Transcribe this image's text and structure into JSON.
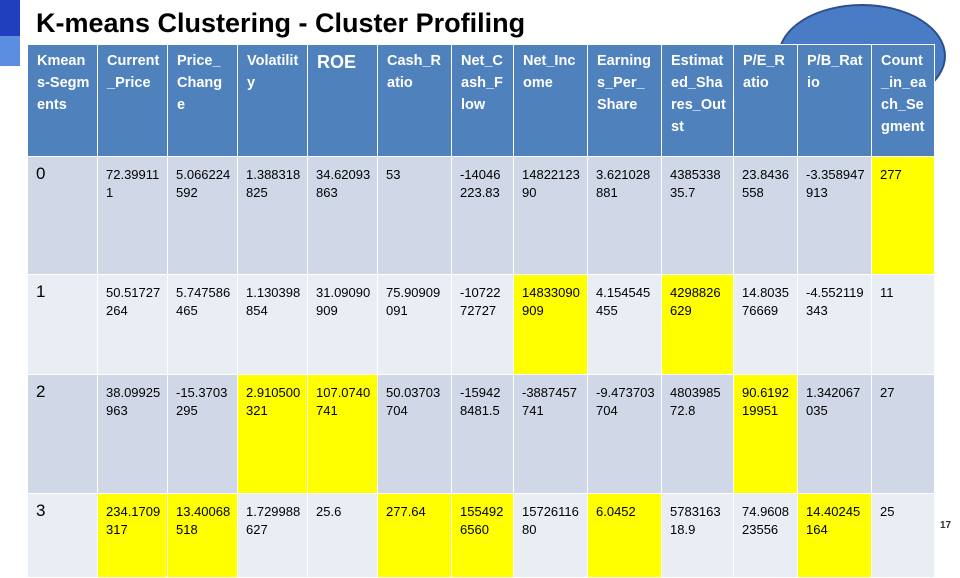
{
  "title": "K-means Clustering - Cluster Profiling",
  "page_number": "17",
  "highlight_color": "#ffff00",
  "header_color": "#4f81bd",
  "table": {
    "headers": [
      "Kmeans-Segments",
      "Current_Price",
      "Price_Change",
      "Volatility",
      "ROE",
      "Cash_Ratio",
      "Net_Cash_Flow",
      "Net_Income",
      "Earnings_Per_Share",
      "Estimated_Shares_Outst",
      "P/E_Ratio",
      "P/B_Ratio",
      "Count_in_each_Segment"
    ],
    "rows": [
      {
        "cells": [
          "0",
          "72.399111",
          "5.066224592",
          "1.388318825",
          "34.62093863",
          "53",
          "-14046223.83",
          "1482212390",
          "3.621028881",
          "438533835.7",
          "23.8436558",
          "-3.358947913",
          "277"
        ],
        "highlight": [
          false,
          false,
          false,
          false,
          false,
          false,
          false,
          false,
          false,
          false,
          false,
          false,
          true
        ]
      },
      {
        "cells": [
          "1",
          "50.51727264",
          "5.747586465",
          "1.130398854",
          "31.09090909",
          "75.90909091",
          "-1072272727",
          "14833090909",
          "4.154545455",
          "4298826629",
          "14.803576669",
          "-4.552119343",
          "11"
        ],
        "highlight": [
          false,
          false,
          false,
          false,
          false,
          false,
          false,
          true,
          false,
          true,
          false,
          false,
          false
        ]
      },
      {
        "cells": [
          "2",
          "38.09925963",
          "-15.3703295",
          "2.910500321",
          "107.0740741",
          "50.03703704",
          "-159428481.5",
          "-3887457741",
          "-9.473703704",
          "480398572.8",
          "90.619219951",
          "1.342067035",
          "27"
        ],
        "highlight": [
          false,
          false,
          false,
          true,
          true,
          false,
          false,
          false,
          false,
          false,
          true,
          false,
          false
        ]
      },
      {
        "cells": [
          "3",
          "234.1709317",
          "13.40068518",
          "1.729988627",
          "25.6",
          "277.64",
          "1554926560",
          "1572611680",
          "6.0452",
          "578316318.9",
          "74.960823556",
          "14.40245164",
          "25"
        ],
        "highlight": [
          false,
          true,
          true,
          false,
          false,
          true,
          true,
          false,
          true,
          false,
          false,
          true,
          false
        ]
      }
    ]
  }
}
